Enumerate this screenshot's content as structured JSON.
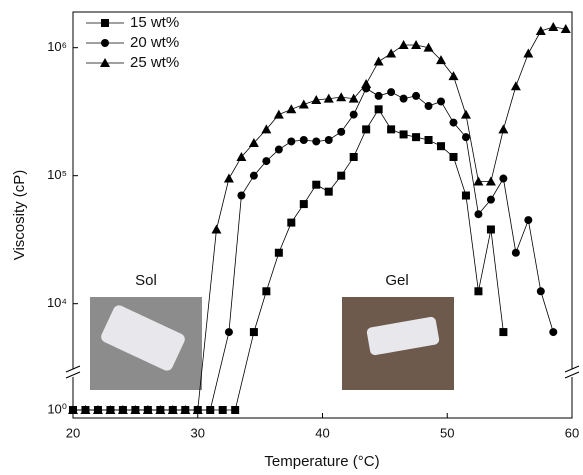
{
  "chart_data": {
    "type": "line",
    "x_label": "Temperature (°C)",
    "y_label": "Viscosity (cP)",
    "xlim": [
      20,
      60
    ],
    "xticks": [
      20,
      30,
      40,
      50,
      60
    ],
    "ylim": [
      1,
      1900000
    ],
    "yticks": [
      {
        "value": 1,
        "label": "10⁰"
      },
      {
        "value": 10000,
        "label": "10⁴"
      },
      {
        "value": 100000,
        "label": "10⁵"
      },
      {
        "value": 1000000,
        "label": "10⁶"
      }
    ],
    "log_scale": true,
    "y_break": 2750,
    "legend": "top-left",
    "annotations": [
      "Sol",
      "Gel"
    ],
    "series": [
      {
        "name": "15 wt%",
        "color": "#000000",
        "marker": "square",
        "x": [
          20,
          21,
          22,
          23,
          24,
          25,
          26,
          27,
          28,
          29,
          30,
          31,
          32,
          33,
          34.5,
          35.5,
          36.5,
          37.5,
          38.5,
          39.5,
          40.5,
          41.5,
          42.5,
          43.5,
          44.5,
          45.5,
          46.5,
          47.5,
          48.5,
          49.5,
          50.5,
          51.5,
          52.5,
          53.5,
          54.5
        ],
        "values": [
          1,
          1,
          1,
          1,
          1,
          1,
          1,
          1,
          1,
          1,
          1,
          1,
          1,
          1,
          6000,
          12500,
          25000,
          43000,
          60000,
          85000,
          75000,
          100000,
          140000,
          230000,
          330000,
          230000,
          210000,
          200000,
          190000,
          170000,
          140000,
          70000,
          12500,
          38000,
          6000
        ]
      },
      {
        "name": "20 wt%",
        "color": "#000000",
        "marker": "circle",
        "x": [
          20,
          21,
          22,
          23,
          24,
          25,
          26,
          27,
          28,
          29,
          30,
          31,
          32.5,
          33.5,
          34.5,
          35.5,
          36.5,
          37.5,
          38.5,
          39.5,
          40.5,
          41.5,
          42.5,
          43.5,
          44.5,
          45.5,
          46.5,
          47.5,
          48.5,
          49.5,
          50.5,
          51.5,
          52.5,
          53.5,
          54.5,
          55.5,
          56.5,
          57.5,
          58.5
        ],
        "values": [
          1,
          1,
          1,
          1,
          1,
          1,
          1,
          1,
          1,
          1,
          1,
          1,
          6000,
          70000,
          100000,
          130000,
          160000,
          185000,
          190000,
          185000,
          190000,
          220000,
          300000,
          480000,
          420000,
          450000,
          400000,
          420000,
          350000,
          380000,
          260000,
          200000,
          50000,
          65000,
          95000,
          25000,
          45000,
          12500,
          6000
        ]
      },
      {
        "name": "25 wt%",
        "color": "#000000",
        "marker": "triangle",
        "x": [
          20,
          21,
          22,
          23,
          24,
          25,
          26,
          27,
          28,
          29,
          30,
          31.5,
          32.5,
          33.5,
          34.5,
          35.5,
          36.5,
          37.5,
          38.5,
          39.5,
          40.5,
          41.5,
          42.5,
          43.5,
          44.5,
          45.5,
          46.5,
          47.5,
          48.5,
          49.5,
          50.5,
          51.5,
          52.5,
          53.5,
          54.5,
          55.5,
          56.5,
          57.5,
          58.5,
          59.5
        ],
        "values": [
          1,
          1,
          1,
          1,
          1,
          1,
          1,
          1,
          1,
          1,
          1,
          38000,
          95000,
          140000,
          180000,
          230000,
          300000,
          330000,
          360000,
          390000,
          400000,
          410000,
          400000,
          520000,
          780000,
          900000,
          1050000,
          1050000,
          1000000,
          800000,
          600000,
          300000,
          90000,
          90000,
          230000,
          500000,
          900000,
          1350000,
          1450000,
          1400000
        ]
      }
    ]
  }
}
